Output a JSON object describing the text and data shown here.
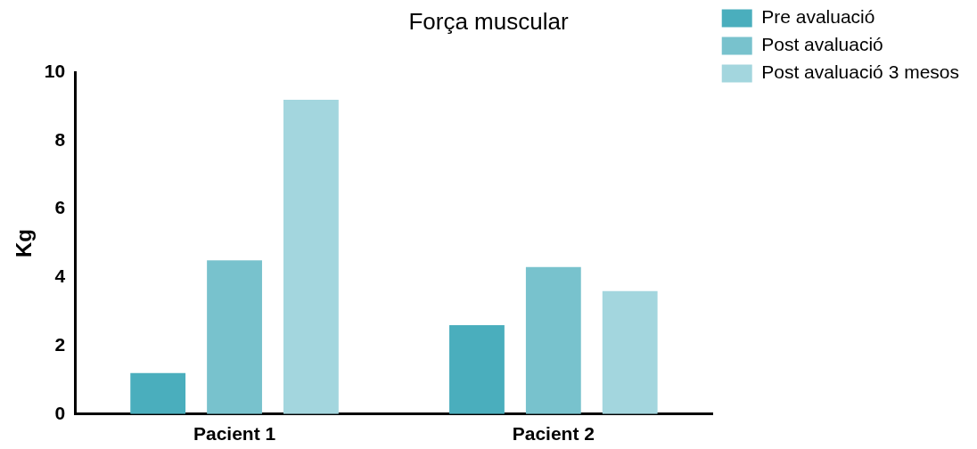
{
  "chart_data": {
    "type": "bar",
    "title": "Força muscular",
    "ylabel": "Kg",
    "categories": [
      "Pacient 1",
      "Pacient 2"
    ],
    "series": [
      {
        "name": "Pre avaluació",
        "color": "#4aaebd",
        "values": [
          1.2,
          2.6
        ]
      },
      {
        "name": "Post avaluació",
        "color": "#78c2cd",
        "values": [
          4.5,
          4.3
        ]
      },
      {
        "name": "Post avaluació 3 mesos",
        "color": "#a3d6de",
        "values": [
          9.2,
          3.6
        ]
      }
    ],
    "ylim": [
      0,
      10
    ],
    "yticks": [
      0,
      2,
      4,
      6,
      8,
      10
    ],
    "grid": false,
    "legend": "top right"
  }
}
